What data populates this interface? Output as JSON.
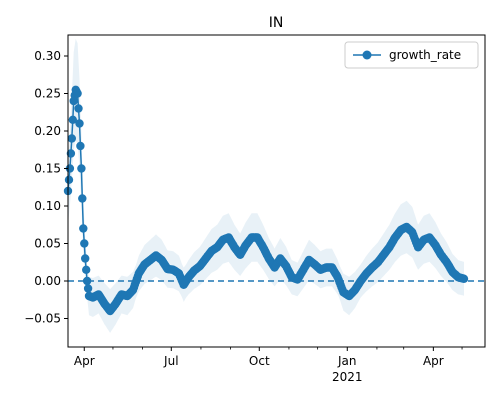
{
  "chart_data": {
    "type": "line",
    "title": "IN",
    "xlabel": "",
    "ylabel": "",
    "x_axis": {
      "type": "date",
      "range": [
        "2020-03-15",
        "2021-05-25"
      ],
      "major_ticks": [
        {
          "date": "2020-04-01",
          "label": "Apr",
          "sublabel": ""
        },
        {
          "date": "2020-07-01",
          "label": "Jul",
          "sublabel": ""
        },
        {
          "date": "2020-10-01",
          "label": "Oct",
          "sublabel": ""
        },
        {
          "date": "2021-01-01",
          "label": "Jan",
          "sublabel": "2021"
        },
        {
          "date": "2021-04-01",
          "label": "Apr",
          "sublabel": ""
        }
      ],
      "minor_tick_dates": [
        "2020-05-01",
        "2020-06-01",
        "2020-08-01",
        "2020-09-01",
        "2020-11-01",
        "2020-12-01",
        "2021-02-01",
        "2021-03-01",
        "2021-05-01"
      ]
    },
    "y_axis": {
      "range": [
        -0.088,
        0.328
      ],
      "ticks": [
        -0.05,
        0.0,
        0.05,
        0.1,
        0.15,
        0.2,
        0.25,
        0.3
      ],
      "tick_labels": [
        "−0.05",
        "0.00",
        "0.05",
        "0.10",
        "0.15",
        "0.20",
        "0.25",
        "0.30"
      ]
    },
    "reference_line": {
      "y": 0.0,
      "style": "dashed",
      "color": "#1f77b4"
    },
    "legend": {
      "position": "top-right"
    },
    "band": {
      "color": "#1f77b4",
      "opacity": 0.1
    },
    "series": [
      {
        "name": "growth_rate",
        "color": "#1f77b4",
        "marker": "circle",
        "points": [
          {
            "date": "2020-03-15",
            "y": 0.12
          },
          {
            "date": "2020-03-17",
            "y": 0.15
          },
          {
            "date": "2020-03-19",
            "y": 0.19
          },
          {
            "date": "2020-03-21",
            "y": 0.24
          },
          {
            "date": "2020-03-23",
            "y": 0.255
          },
          {
            "date": "2020-03-25",
            "y": 0.25
          },
          {
            "date": "2020-03-27",
            "y": 0.21
          },
          {
            "date": "2020-03-29",
            "y": 0.15
          },
          {
            "date": "2020-03-31",
            "y": 0.07
          },
          {
            "date": "2020-04-02",
            "y": 0.03
          },
          {
            "date": "2020-04-04",
            "y": 0.0
          },
          {
            "date": "2020-04-06",
            "y": -0.02
          },
          {
            "date": "2020-04-10",
            "y": -0.022
          },
          {
            "date": "2020-04-16",
            "y": -0.018
          },
          {
            "date": "2020-04-22",
            "y": -0.03
          },
          {
            "date": "2020-04-28",
            "y": -0.04
          },
          {
            "date": "2020-05-04",
            "y": -0.03
          },
          {
            "date": "2020-05-10",
            "y": -0.018
          },
          {
            "date": "2020-05-16",
            "y": -0.02
          },
          {
            "date": "2020-05-22",
            "y": -0.012
          },
          {
            "date": "2020-05-28",
            "y": 0.01
          },
          {
            "date": "2020-06-03",
            "y": 0.022
          },
          {
            "date": "2020-06-09",
            "y": 0.028
          },
          {
            "date": "2020-06-15",
            "y": 0.034
          },
          {
            "date": "2020-06-21",
            "y": 0.028
          },
          {
            "date": "2020-06-27",
            "y": 0.016
          },
          {
            "date": "2020-07-03",
            "y": 0.015
          },
          {
            "date": "2020-07-09",
            "y": 0.01
          },
          {
            "date": "2020-07-14",
            "y": -0.005
          },
          {
            "date": "2020-07-19",
            "y": 0.005
          },
          {
            "date": "2020-07-25",
            "y": 0.014
          },
          {
            "date": "2020-07-31",
            "y": 0.02
          },
          {
            "date": "2020-08-06",
            "y": 0.03
          },
          {
            "date": "2020-08-12",
            "y": 0.04
          },
          {
            "date": "2020-08-18",
            "y": 0.045
          },
          {
            "date": "2020-08-24",
            "y": 0.055
          },
          {
            "date": "2020-08-30",
            "y": 0.058
          },
          {
            "date": "2020-09-05",
            "y": 0.045
          },
          {
            "date": "2020-09-11",
            "y": 0.035
          },
          {
            "date": "2020-09-17",
            "y": 0.048
          },
          {
            "date": "2020-09-23",
            "y": 0.058
          },
          {
            "date": "2020-09-29",
            "y": 0.058
          },
          {
            "date": "2020-10-05",
            "y": 0.045
          },
          {
            "date": "2020-10-11",
            "y": 0.03
          },
          {
            "date": "2020-10-17",
            "y": 0.018
          },
          {
            "date": "2020-10-23",
            "y": 0.03
          },
          {
            "date": "2020-10-29",
            "y": 0.02
          },
          {
            "date": "2020-11-04",
            "y": 0.005
          },
          {
            "date": "2020-11-10",
            "y": 0.002
          },
          {
            "date": "2020-11-16",
            "y": 0.015
          },
          {
            "date": "2020-11-22",
            "y": 0.028
          },
          {
            "date": "2020-11-28",
            "y": 0.022
          },
          {
            "date": "2020-12-04",
            "y": 0.015
          },
          {
            "date": "2020-12-10",
            "y": 0.018
          },
          {
            "date": "2020-12-16",
            "y": 0.018
          },
          {
            "date": "2020-12-22",
            "y": 0.005
          },
          {
            "date": "2020-12-28",
            "y": -0.015
          },
          {
            "date": "2021-01-03",
            "y": -0.02
          },
          {
            "date": "2021-01-09",
            "y": -0.012
          },
          {
            "date": "2021-01-15",
            "y": 0.0
          },
          {
            "date": "2021-01-21",
            "y": 0.01
          },
          {
            "date": "2021-01-27",
            "y": 0.018
          },
          {
            "date": "2021-02-02",
            "y": 0.025
          },
          {
            "date": "2021-02-08",
            "y": 0.035
          },
          {
            "date": "2021-02-14",
            "y": 0.045
          },
          {
            "date": "2021-02-20",
            "y": 0.058
          },
          {
            "date": "2021-02-26",
            "y": 0.068
          },
          {
            "date": "2021-03-04",
            "y": 0.072
          },
          {
            "date": "2021-03-10",
            "y": 0.065
          },
          {
            "date": "2021-03-16",
            "y": 0.045
          },
          {
            "date": "2021-03-22",
            "y": 0.055
          },
          {
            "date": "2021-03-28",
            "y": 0.058
          },
          {
            "date": "2021-04-03",
            "y": 0.048
          },
          {
            "date": "2021-04-09",
            "y": 0.035
          },
          {
            "date": "2021-04-15",
            "y": 0.025
          },
          {
            "date": "2021-04-21",
            "y": 0.012
          },
          {
            "date": "2021-04-27",
            "y": 0.005
          },
          {
            "date": "2021-05-03",
            "y": 0.003
          }
        ]
      }
    ]
  }
}
